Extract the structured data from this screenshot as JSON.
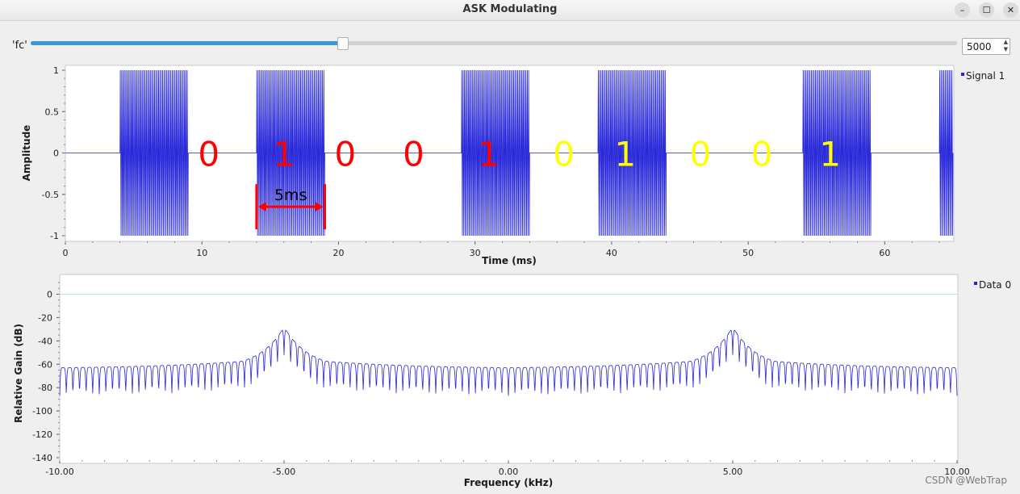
{
  "window": {
    "title": "ASK Modulating",
    "minimize_glyph": "–",
    "maximize_glyph": "☐",
    "close_glyph": "✕"
  },
  "controls": {
    "fc": {
      "label": "'fc'",
      "value": "5000",
      "slider_fraction": 0.336
    }
  },
  "colors": {
    "trace": "#2424d8",
    "bit_red": "#ff0000",
    "bit_yellow": "#ffff00",
    "marker": "#ff0000",
    "slider": "#3d95d8"
  },
  "chart_data": [
    {
      "type": "line",
      "title": "",
      "xlabel": "Time (ms)",
      "ylabel": "Amplitude",
      "xlim": [
        0,
        65
      ],
      "ylim": [
        -1,
        1
      ],
      "xticks": [
        "0",
        "10",
        "20",
        "30",
        "40",
        "50",
        "60"
      ],
      "yticks": [
        "1",
        "0.5",
        "0",
        "-0.5",
        "-1"
      ],
      "legend": [
        "Signal 1"
      ],
      "carrier_on_ms": [
        [
          4,
          9
        ],
        [
          14,
          19
        ],
        [
          29,
          34
        ],
        [
          39,
          44
        ],
        [
          54,
          59
        ],
        [
          64,
          65
        ]
      ],
      "bit_labels": [
        {
          "text": "0",
          "t": 10.5,
          "color": "red"
        },
        {
          "text": "1",
          "t": 16,
          "color": "red"
        },
        {
          "text": "0",
          "t": 20.5,
          "color": "red"
        },
        {
          "text": "0",
          "t": 25.5,
          "color": "red"
        },
        {
          "text": "1",
          "t": 31,
          "color": "red"
        },
        {
          "text": "0",
          "t": 36.5,
          "color": "yellow"
        },
        {
          "text": "1",
          "t": 41,
          "color": "yellow"
        },
        {
          "text": "0",
          "t": 46.5,
          "color": "yellow"
        },
        {
          "text": "0",
          "t": 51,
          "color": "yellow"
        },
        {
          "text": "1",
          "t": 56,
          "color": "yellow"
        }
      ],
      "annotation": {
        "text": "5ms",
        "from_ms": 14,
        "to_ms": 19,
        "y": -0.65
      }
    },
    {
      "type": "line",
      "title": "",
      "xlabel": "Frequency (kHz)",
      "ylabel": "Relative Gain (dB)",
      "xlim": [
        -10,
        10
      ],
      "ylim": [
        -140,
        10
      ],
      "xticks": [
        "-10.00",
        "-5.00",
        "0.00",
        "5.00",
        "10.00"
      ],
      "yticks": [
        "0",
        "-20",
        "-40",
        "-60",
        "-80",
        "-100",
        "-120",
        "-140"
      ],
      "legend": [
        "Data 0"
      ],
      "reference_line_db": 0,
      "peaks": [
        {
          "f_khz": -5,
          "db": -24
        },
        {
          "f_khz": 5,
          "db": -24
        }
      ],
      "noise_floor_db": [
        -60,
        -88
      ]
    }
  ],
  "footer": {
    "watermark": "CSDN @WebTrap"
  }
}
